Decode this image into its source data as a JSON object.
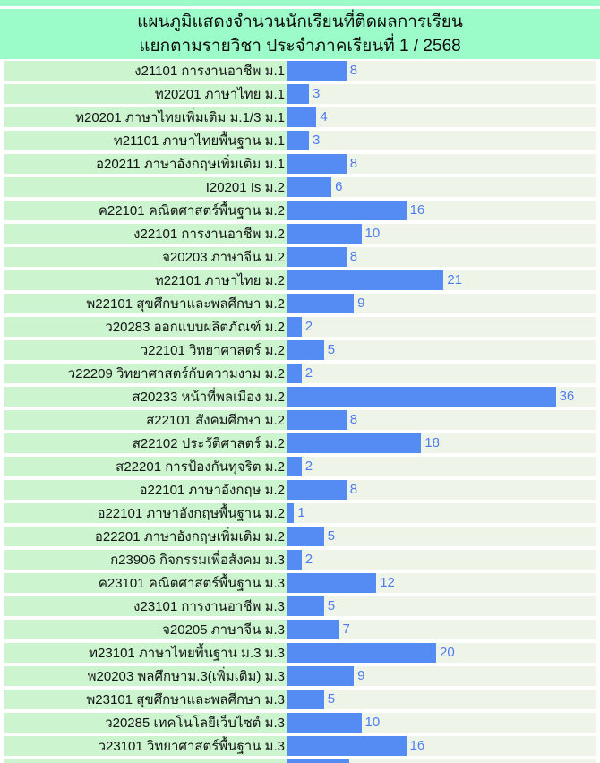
{
  "title": {
    "line1": "แผนภูมิแสดงจำนวนนักเรียนที่ติดผลการเรียน",
    "line2": "แยกตามรายวิชา ประจำภาคเรียนที่ 1 / 2568"
  },
  "chart_data": {
    "type": "bar",
    "orientation": "horizontal",
    "title": "แผนภูมิแสดงจำนวนนักเรียนที่ติดผลการเรียน แยกตามรายวิชา ประจำภาคเรียนที่ 1 / 2568",
    "xlabel": "",
    "ylabel": "",
    "xlim": [
      0,
      41
    ],
    "grid": false,
    "legend": false,
    "data_labels": true,
    "categories": [
      "ง21101 การงานอาชีพ ม.1",
      "ท20201 ภาษาไทย ม.1",
      "ท20201 ภาษาไทยเพิ่มเติม ม.1/3 ม.1",
      "ท21101 ภาษาไทยพื้นฐาน ม.1",
      "อ20211 ภาษาอังกฤษเพิ่มเติม ม.1",
      "I20201 Is ม.2",
      "ค22101 คณิตศาสตร์พื้นฐาน ม.2",
      "ง22101 การงานอาชีพ ม.2",
      "จ20203 ภาษาจีน ม.2",
      "ท22101 ภาษาไทย ม.2",
      "พ22101 สุขศึกษาและพลศึกษา ม.2",
      "ว20283 ออกแบบผลิตภัณฑ์ ม.2",
      "ว22101 วิทยาศาสตร์ ม.2",
      "ว22209 วิทยาศาสตร์กับความงาม ม.2",
      "ส20233 หน้าที่พลเมือง ม.2",
      "ส22101 สังคมศึกษา ม.2",
      "ส22102 ประวัติศาสตร์ ม.2",
      "ส22201 การป้องกันทุจริต ม.2",
      "อ22101 ภาษาอังกฤษ ม.2",
      "อ22101 ภาษาอังกฤษพื้นฐาน ม.2",
      "อ22201 ภาษาอังกฤษเพิ่มเติม ม.2",
      "ก23906 กิจกรรมเพื่อสังคม ม.3",
      "ค23101 คณิตศาสตร์พื้นฐาน ม.3",
      "ง23101 การงานอาชีพ ม.3",
      "จ20205 ภาษาจีน ม.3",
      "ท23101 ภาษาไทยพื้นฐาน ม.3 ม.3",
      "พ20203 พลศึกษาม.3(เพิ่มเติม) ม.3",
      "พ23101 สุขศึกษาและพลศึกษา ม.3",
      "ว20285 เทคโนโลยีเว็บไซต์ ม.3",
      "ว23101 วิทยาศาสตร์พื้นฐาน ม.3"
    ],
    "values": [
      8,
      3,
      4,
      3,
      8,
      6,
      16,
      10,
      8,
      21,
      9,
      2,
      5,
      2,
      36,
      8,
      18,
      2,
      8,
      1,
      5,
      2,
      12,
      5,
      7,
      20,
      9,
      5,
      10,
      16
    ],
    "partial_row_at_bottom": true
  },
  "colors": {
    "header_bg": "#9bfcc9",
    "label_bg": "#cbf4cf",
    "track_bg": "#eef5e8",
    "bar": "#548cf4",
    "value_text": "#4f7df0",
    "title_text": "#0c0c0c"
  }
}
